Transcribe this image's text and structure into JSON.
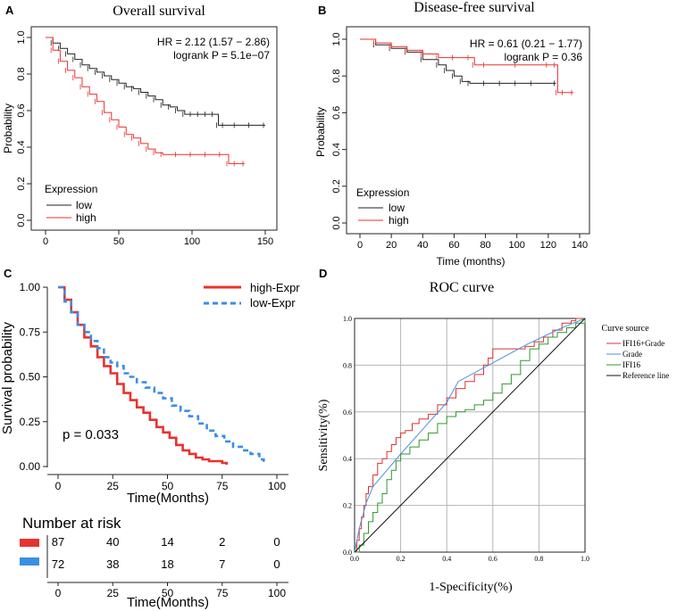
{
  "colors": {
    "red": "#e8322e",
    "black": "#222222",
    "blue": "#3a8ee6",
    "roc_red": "#e03030",
    "roc_blue": "#4a90e2",
    "roc_green": "#2e9a2e",
    "grid": "#b5b5b5"
  },
  "chart_data": [
    {
      "panel": "A",
      "type": "line",
      "title": "Overall survival",
      "xlabel": "",
      "ylabel": "Probability",
      "xlim": [
        0,
        150
      ],
      "ylim": [
        0,
        1
      ],
      "xticks": [
        "0",
        "50",
        "100",
        "150"
      ],
      "yticks": [
        "0.0",
        "0.2",
        "0.4",
        "0.6",
        "0.8",
        "1.0"
      ],
      "annotations": [
        "HR = 2.12 (1.57 − 2.86)",
        "logrank P = 5.1e−07"
      ],
      "legend_title": "Expression",
      "series": [
        {
          "name": "low",
          "color": "#222222",
          "x": [
            0,
            5,
            10,
            15,
            20,
            25,
            30,
            35,
            40,
            45,
            50,
            55,
            60,
            65,
            70,
            75,
            80,
            85,
            90,
            95,
            100,
            105,
            110,
            115,
            118,
            122,
            130,
            140,
            150
          ],
          "y": [
            1.0,
            0.97,
            0.94,
            0.91,
            0.88,
            0.85,
            0.83,
            0.81,
            0.79,
            0.77,
            0.75,
            0.73,
            0.72,
            0.7,
            0.68,
            0.66,
            0.63,
            0.62,
            0.6,
            0.58,
            0.58,
            0.58,
            0.58,
            0.58,
            0.52,
            0.52,
            0.52,
            0.52,
            0.52
          ]
        },
        {
          "name": "high",
          "color": "#e8322e",
          "x": [
            0,
            5,
            10,
            15,
            20,
            25,
            30,
            35,
            40,
            45,
            50,
            55,
            60,
            65,
            70,
            75,
            80,
            90,
            100,
            110,
            120,
            125,
            130,
            136
          ],
          "y": [
            1.0,
            0.93,
            0.87,
            0.82,
            0.78,
            0.73,
            0.69,
            0.65,
            0.59,
            0.55,
            0.51,
            0.47,
            0.45,
            0.42,
            0.39,
            0.37,
            0.36,
            0.36,
            0.36,
            0.36,
            0.36,
            0.31,
            0.31,
            0.31
          ]
        }
      ]
    },
    {
      "panel": "B",
      "type": "line",
      "title": "Disease-free survival",
      "xlabel": "Time (months)",
      "ylabel": "Probability",
      "xlim": [
        0,
        140
      ],
      "ylim": [
        0,
        1
      ],
      "xticks": [
        "0",
        "20",
        "40",
        "60",
        "80",
        "100",
        "120",
        "140"
      ],
      "yticks": [
        "0.0",
        "0.2",
        "0.4",
        "0.6",
        "0.8",
        "1.0"
      ],
      "annotations": [
        "HR = 0.61 (0.21 − 1.77)",
        "logrank P = 0.36"
      ],
      "legend_title": "Expression",
      "series": [
        {
          "name": "low",
          "color": "#222222",
          "x": [
            0,
            10,
            20,
            30,
            40,
            50,
            55,
            60,
            65,
            70,
            80,
            90,
            100,
            110,
            125
          ],
          "y": [
            1.0,
            0.97,
            0.95,
            0.93,
            0.89,
            0.86,
            0.83,
            0.8,
            0.77,
            0.76,
            0.76,
            0.76,
            0.76,
            0.76,
            0.76
          ]
        },
        {
          "name": "high",
          "color": "#e8322e",
          "x": [
            0,
            10,
            20,
            30,
            40,
            50,
            60,
            70,
            73,
            80,
            100,
            120,
            125,
            126,
            130,
            136
          ],
          "y": [
            1.0,
            0.98,
            0.96,
            0.94,
            0.92,
            0.9,
            0.9,
            0.9,
            0.86,
            0.86,
            0.86,
            0.86,
            0.86,
            0.71,
            0.71,
            0.71
          ]
        }
      ]
    },
    {
      "panel": "C",
      "type": "line",
      "title": "",
      "xlabel": "Time(Months)",
      "ylabel": "Survival probability",
      "xlim": [
        0,
        100
      ],
      "ylim": [
        0,
        1
      ],
      "xticks": [
        "0",
        "25",
        "50",
        "75",
        "100"
      ],
      "yticks": [
        "0.00",
        "0.25",
        "0.50",
        "0.75",
        "1.00"
      ],
      "annotations": [
        "p = 0.033"
      ],
      "series": [
        {
          "name": "high-Expr",
          "color": "#e8322e",
          "x": [
            0,
            3,
            6,
            9,
            12,
            15,
            18,
            21,
            24,
            27,
            30,
            33,
            36,
            39,
            42,
            45,
            48,
            51,
            54,
            57,
            60,
            63,
            66,
            69,
            72,
            75,
            77
          ],
          "y": [
            1.0,
            0.93,
            0.86,
            0.79,
            0.72,
            0.67,
            0.61,
            0.56,
            0.52,
            0.46,
            0.41,
            0.37,
            0.33,
            0.3,
            0.26,
            0.22,
            0.19,
            0.16,
            0.12,
            0.09,
            0.07,
            0.05,
            0.04,
            0.03,
            0.03,
            0.02,
            0.01
          ]
        },
        {
          "name": "low-Expr",
          "color": "#3a8ee6",
          "x": [
            0,
            3,
            6,
            9,
            12,
            15,
            18,
            21,
            24,
            27,
            30,
            33,
            36,
            40,
            44,
            48,
            52,
            56,
            60,
            64,
            68,
            72,
            76,
            80,
            84,
            88,
            92,
            94
          ],
          "y": [
            1.0,
            0.92,
            0.86,
            0.79,
            0.75,
            0.7,
            0.66,
            0.61,
            0.58,
            0.56,
            0.52,
            0.5,
            0.47,
            0.44,
            0.41,
            0.38,
            0.34,
            0.31,
            0.28,
            0.24,
            0.2,
            0.17,
            0.14,
            0.11,
            0.09,
            0.07,
            0.04,
            0.01
          ]
        }
      ],
      "risk_table": {
        "title": "Number at risk",
        "xlabel": "Time(Months)",
        "times": [
          "0",
          "25",
          "50",
          "75",
          "100"
        ],
        "rows": [
          {
            "group": "high-Expr",
            "color": "#e8322e",
            "counts": [
              "87",
              "40",
              "14",
              "2",
              "0"
            ]
          },
          {
            "group": "low-Expr",
            "color": "#3a8ee6",
            "counts": [
              "72",
              "38",
              "18",
              "7",
              "0"
            ]
          }
        ]
      }
    },
    {
      "panel": "D",
      "type": "line",
      "title": "ROC curve",
      "xlabel": "1-Specificity(%)",
      "ylabel": "Sensitivity(%)",
      "xlim": [
        0,
        1
      ],
      "ylim": [
        0,
        1
      ],
      "xticks": [
        "0.0",
        "0.2",
        "0.4",
        "0.6",
        "0.8",
        "1.0"
      ],
      "yticks": [
        "0.0",
        "0.2",
        "0.4",
        "0.6",
        "0.8",
        "1.0"
      ],
      "legend_title": "Curve source",
      "series": [
        {
          "name": "IFI16+Grade",
          "color": "#e03030",
          "x": [
            0,
            0.01,
            0.02,
            0.03,
            0.04,
            0.05,
            0.06,
            0.08,
            0.1,
            0.12,
            0.14,
            0.16,
            0.18,
            0.2,
            0.22,
            0.25,
            0.28,
            0.32,
            0.36,
            0.4,
            0.44,
            0.48,
            0.52,
            0.56,
            0.58,
            0.6,
            0.62,
            0.66,
            0.7,
            0.74,
            0.78,
            0.82,
            0.86,
            0.9,
            0.94,
            0.96,
            1.0
          ],
          "y": [
            0,
            0.05,
            0.1,
            0.15,
            0.2,
            0.25,
            0.28,
            0.33,
            0.38,
            0.4,
            0.43,
            0.46,
            0.49,
            0.51,
            0.52,
            0.55,
            0.57,
            0.59,
            0.63,
            0.66,
            0.7,
            0.73,
            0.76,
            0.8,
            0.83,
            0.87,
            0.87,
            0.87,
            0.87,
            0.88,
            0.9,
            0.92,
            0.95,
            0.98,
            0.99,
            1.0,
            1.0
          ]
        },
        {
          "name": "Grade",
          "color": "#4a90e2",
          "x": [
            0,
            0.02,
            0.05,
            0.08,
            0.2,
            0.3,
            0.4,
            0.45,
            0.6,
            0.75,
            0.9,
            1.0
          ],
          "y": [
            0,
            0.1,
            0.21,
            0.28,
            0.42,
            0.53,
            0.64,
            0.73,
            0.81,
            0.89,
            0.96,
            1.0
          ]
        },
        {
          "name": "IFI16",
          "color": "#2e9a2e",
          "x": [
            0,
            0.02,
            0.04,
            0.06,
            0.08,
            0.1,
            0.12,
            0.14,
            0.16,
            0.18,
            0.2,
            0.24,
            0.28,
            0.32,
            0.36,
            0.4,
            0.44,
            0.48,
            0.52,
            0.56,
            0.6,
            0.64,
            0.68,
            0.72,
            0.76,
            0.8,
            0.84,
            0.88,
            0.92,
            0.96,
            1.0
          ],
          "y": [
            0,
            0.03,
            0.08,
            0.13,
            0.17,
            0.21,
            0.25,
            0.31,
            0.35,
            0.39,
            0.42,
            0.45,
            0.48,
            0.51,
            0.55,
            0.58,
            0.6,
            0.61,
            0.63,
            0.65,
            0.68,
            0.72,
            0.76,
            0.82,
            0.87,
            0.89,
            0.92,
            0.94,
            0.96,
            0.98,
            1.0
          ]
        },
        {
          "name": "Reference line",
          "color": "#111111",
          "x": [
            0,
            1
          ],
          "y": [
            0,
            1
          ]
        }
      ]
    }
  ],
  "panels": {
    "A": {
      "letter": "A",
      "title": "Overall survival",
      "ylabel": "Probability",
      "hr": "HR = 2.12 (1.57 − 2.86)",
      "logrank": "logrank P = 5.1e−07",
      "legend_title": "Expression",
      "legend_low": "low",
      "legend_high": "high"
    },
    "B": {
      "letter": "B",
      "title": "Disease-free survival",
      "ylabel": "Probability",
      "xlabel": "Time (months)",
      "hr": "HR = 0.61 (0.21 − 1.77)",
      "logrank": "logrank P = 0.36",
      "legend_title": "Expression",
      "legend_low": "low",
      "legend_high": "high"
    },
    "C": {
      "letter": "C",
      "ylabel": "Survival probability",
      "xlabel": "Time(Months)",
      "pvalue": "p = 0.033",
      "legend_high": "high-Expr",
      "legend_low": "low-Expr",
      "risk_title": "Number at risk",
      "risk_xlabel": "Time(Months)"
    },
    "D": {
      "letter": "D",
      "title": "ROC curve",
      "ylabel": "Sensitivity(%)",
      "xlabel": "1-Specificity(%)",
      "legend_title": "Curve source",
      "legend_items": [
        "IFI16+Grade",
        "Grade",
        "IFI16",
        "Reference line"
      ]
    }
  }
}
